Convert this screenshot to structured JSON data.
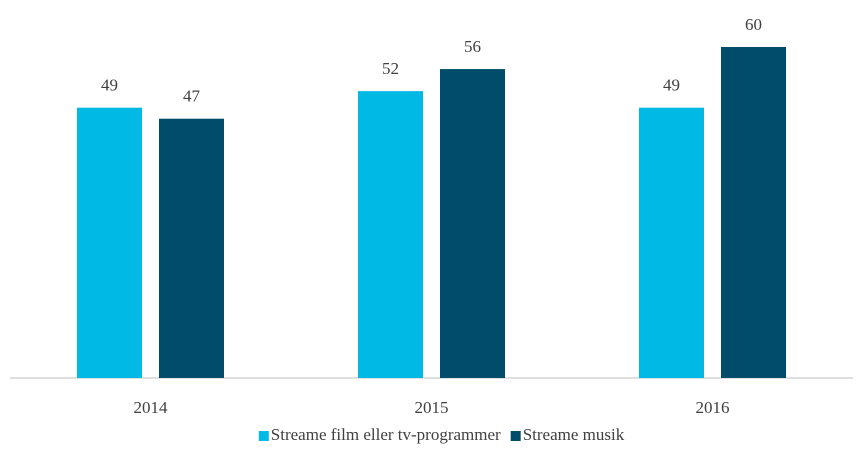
{
  "chart_data": {
    "type": "bar",
    "categories": [
      "2014",
      "2015",
      "2016"
    ],
    "series": [
      {
        "name": "Streame film eller tv-programmer",
        "color": "#00b9e4",
        "values": [
          49,
          52,
          49
        ]
      },
      {
        "name": "Streame musik",
        "color": "#004c6a",
        "values": [
          47,
          56,
          60
        ]
      }
    ],
    "ylim": [
      0,
      60
    ],
    "legend": "bottom"
  }
}
